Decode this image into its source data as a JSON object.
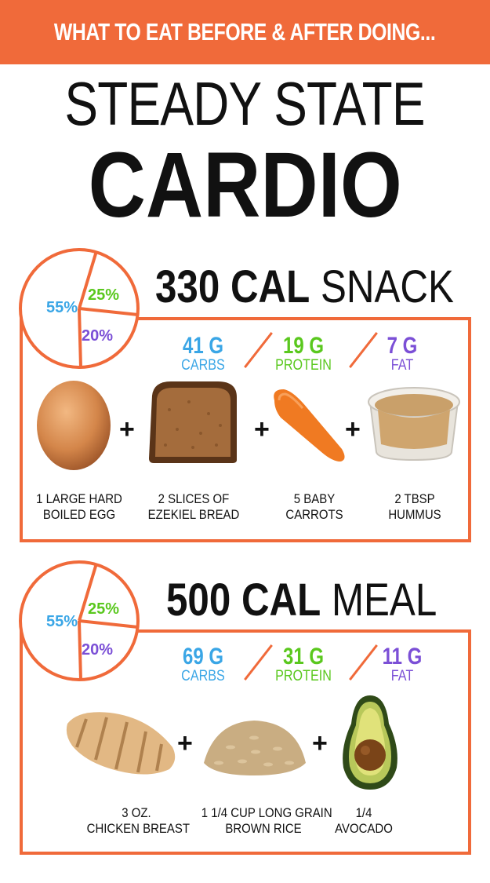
{
  "banner": {
    "text": "WHAT TO EAT BEFORE & AFTER DOING..."
  },
  "title": {
    "line1": "STEADY STATE",
    "line2": "CARDIO"
  },
  "colors": {
    "accent": "#f06a3a",
    "carbs": "#3aa6e6",
    "protein": "#5ac81e",
    "fat": "#7b4fd6"
  },
  "snack": {
    "heading_bold": "330 CAL",
    "heading_light": "SNACK",
    "pie": {
      "carbs_pct": 55,
      "protein_pct": 25,
      "fat_pct": 20,
      "carbs_label": "55%",
      "protein_label": "25%",
      "fat_label": "20%"
    },
    "macros": [
      {
        "grams": "41 G",
        "name": "CARBS"
      },
      {
        "grams": "19 G",
        "name": "PROTEIN"
      },
      {
        "grams": "7 G",
        "name": "FAT"
      }
    ],
    "foods": [
      {
        "icon": "egg-icon",
        "line1": "1 LARGE HARD",
        "line2": "BOILED EGG"
      },
      {
        "icon": "bread-icon",
        "line1": "2 SLICES OF",
        "line2": "EZEKIEL BREAD"
      },
      {
        "icon": "carrot-icon",
        "line1": "5 BABY",
        "line2": "CARROTS"
      },
      {
        "icon": "hummus-icon",
        "line1": "2 TBSP",
        "line2": "HUMMUS"
      }
    ]
  },
  "meal": {
    "heading_bold": "500 CAL",
    "heading_light": "MEAL",
    "pie": {
      "carbs_pct": 55,
      "protein_pct": 25,
      "fat_pct": 20,
      "carbs_label": "55%",
      "protein_label": "25%",
      "fat_label": "20%"
    },
    "macros": [
      {
        "grams": "69 G",
        "name": "CARBS"
      },
      {
        "grams": "31 G",
        "name": "PROTEIN"
      },
      {
        "grams": "11 G",
        "name": "FAT"
      }
    ],
    "foods": [
      {
        "icon": "chicken-icon",
        "line1": "3 OZ.",
        "line2": "CHICKEN BREAST"
      },
      {
        "icon": "rice-icon",
        "line1": "1 1/4 CUP LONG GRAIN",
        "line2": "BROWN RICE"
      },
      {
        "icon": "avocado-icon",
        "line1": "1/4",
        "line2": "AVOCADO"
      }
    ]
  },
  "plus": "+"
}
